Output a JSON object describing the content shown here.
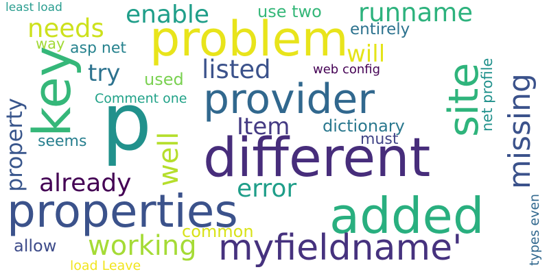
{
  "words": [
    {
      "text": "least load",
      "color": "#2a9d8f"
    },
    {
      "text": "problem",
      "color": "#e8e41b"
    },
    {
      "text": "runname",
      "color": "#2db27d"
    },
    {
      "text": "enable",
      "color": "#1f9e89"
    },
    {
      "text": "use two",
      "color": "#35b779"
    },
    {
      "text": "needs",
      "color": "#cde11d"
    },
    {
      "text": "entirely",
      "color": "#2c728e"
    },
    {
      "text": "key",
      "color": "#35b779"
    },
    {
      "text": "site",
      "color": "#2fb47c"
    },
    {
      "text": "missing",
      "color": "#3b528b"
    },
    {
      "text": "will",
      "color": "#e4e419"
    },
    {
      "text": "way",
      "color": "#a2da37"
    },
    {
      "text": "asp net",
      "color": "#26828e"
    },
    {
      "text": "try",
      "color": "#2c728e"
    },
    {
      "text": "listed",
      "color": "#3b528b"
    },
    {
      "text": "web config",
      "color": "#440154"
    },
    {
      "text": "used",
      "color": "#7ad151"
    },
    {
      "text": "provider",
      "color": "#31688e"
    },
    {
      "text": "net profile",
      "color": "#21918c"
    },
    {
      "text": "Comment one",
      "color": "#1fa187"
    },
    {
      "text": "property",
      "color": "#39568c"
    },
    {
      "text": "p",
      "color": "#21918c"
    },
    {
      "text": "Item",
      "color": "#443a83"
    },
    {
      "text": "dictionary",
      "color": "#2a788e"
    },
    {
      "text": "well",
      "color": "#b5de2b"
    },
    {
      "text": "must",
      "color": "#414487"
    },
    {
      "text": "seems",
      "color": "#277f8e"
    },
    {
      "text": "different",
      "color": "#472d7b"
    },
    {
      "text": "already",
      "color": "#440154"
    },
    {
      "text": "error",
      "color": "#1f9e89"
    },
    {
      "text": "properties",
      "color": "#3b528b"
    },
    {
      "text": "added",
      "color": "#29af7f"
    },
    {
      "text": "common",
      "color": "#d8e219"
    },
    {
      "text": "allow",
      "color": "#3e4c8a"
    },
    {
      "text": "working",
      "color": "#a5db36"
    },
    {
      "text": "myfieldname'",
      "color": "#46327e"
    },
    {
      "text": "types even",
      "color": "#31688e"
    },
    {
      "text": "load Leave",
      "color": "#f1e51d"
    }
  ]
}
